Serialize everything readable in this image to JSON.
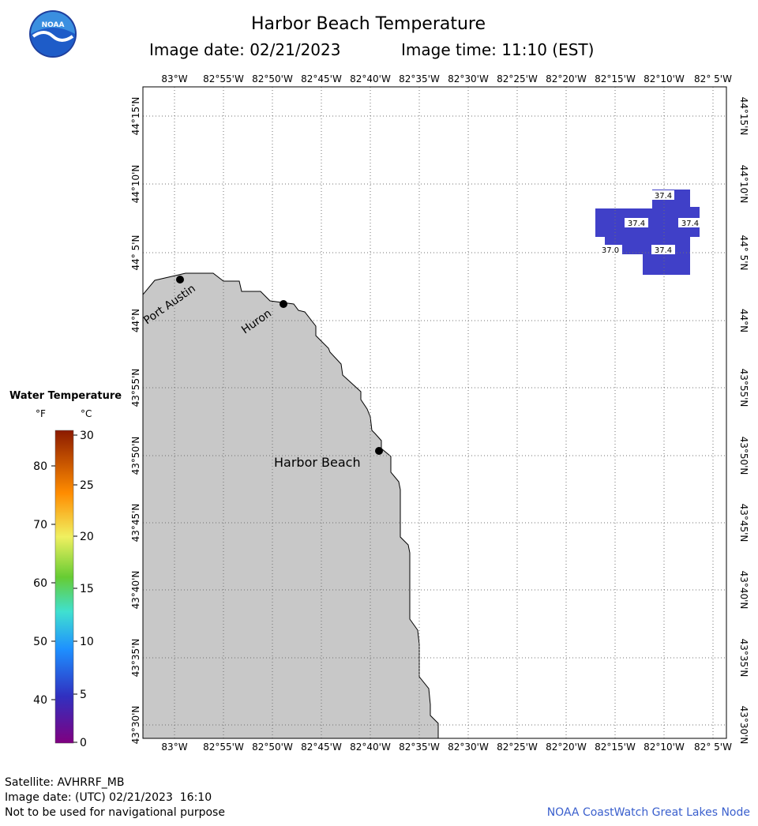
{
  "header": {
    "title": "Harbor Beach Temperature",
    "image_date": "Image date: 02/21/2023",
    "image_time": "Image time: 11:10 (EST)"
  },
  "logo_text": "NOAA",
  "map": {
    "lon_labels": [
      "83°W",
      "82°55'W",
      "82°50'W",
      "82°45'W",
      "82°40'W",
      "82°35'W",
      "82°30'W",
      "82°25'W",
      "82°20'W",
      "82°15'W",
      "82°10'W",
      "82° 5'W"
    ],
    "lat_labels": [
      "44°15'N",
      "44°10'N",
      "44° 5'N",
      "44°N",
      "43°55'N",
      "43°50'N",
      "43°45'N",
      "43°40'N",
      "43°35'N",
      "43°30'N"
    ],
    "land_color": "#c8c8c8",
    "water_color": "#ffffff",
    "temp_pixel_color": "#4040c8",
    "cities": [
      {
        "name": "Port Austin"
      },
      {
        "name": "Huron"
      },
      {
        "name": "Harbor Beach"
      }
    ],
    "temp_labels": [
      "37.4",
      "37.4",
      "37.4",
      "37.0",
      "37.4"
    ]
  },
  "legend": {
    "title": "Water Temperature",
    "f_unit": "°F",
    "c_unit": "°C",
    "f_ticks": [
      "80",
      "70",
      "60",
      "50",
      "40"
    ],
    "c_ticks": [
      "30",
      "25",
      "20",
      "15",
      "10",
      "5",
      "0"
    ]
  },
  "footer": {
    "satellite": "Satellite: AVHRRF_MB",
    "image_date_utc": "Image date: (UTC) 02/21/2023  16:10",
    "disclaimer": "Not to be used for navigational purpose",
    "credit": "NOAA CoastWatch Great Lakes Node"
  }
}
